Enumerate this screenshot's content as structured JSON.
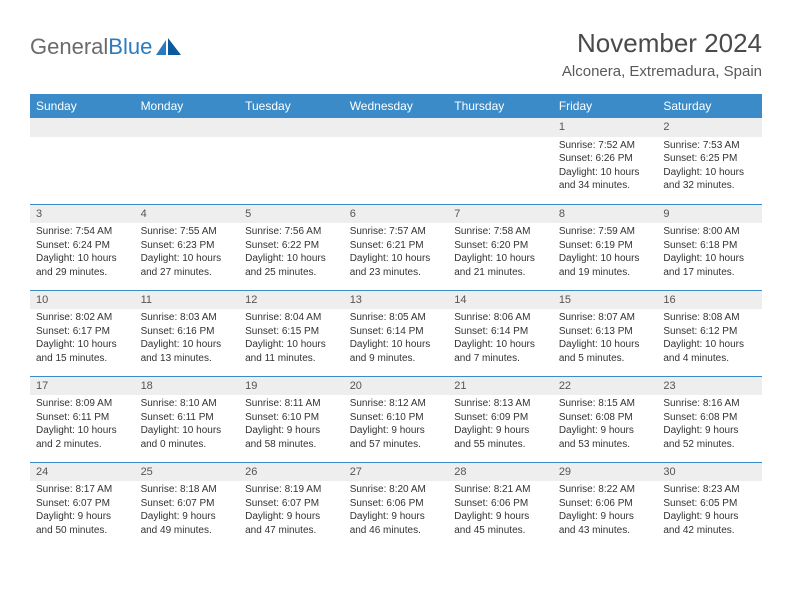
{
  "brand": {
    "part1": "General",
    "part2": "Blue"
  },
  "title": "November 2024",
  "location": "Alconera, Extremadura, Spain",
  "colors": {
    "header_bg": "#3b8bc9",
    "header_text": "#ffffff",
    "cell_border": "#3b8bc9",
    "daynum_bg": "#eeeeee",
    "brand_gray": "#6b6b6b",
    "brand_blue": "#2b7bbf",
    "body_text": "#333333"
  },
  "weekdays": [
    "Sunday",
    "Monday",
    "Tuesday",
    "Wednesday",
    "Thursday",
    "Friday",
    "Saturday"
  ],
  "weeks": [
    [
      {
        "day": "",
        "sunrise": "",
        "sunset": "",
        "daylight": ""
      },
      {
        "day": "",
        "sunrise": "",
        "sunset": "",
        "daylight": ""
      },
      {
        "day": "",
        "sunrise": "",
        "sunset": "",
        "daylight": ""
      },
      {
        "day": "",
        "sunrise": "",
        "sunset": "",
        "daylight": ""
      },
      {
        "day": "",
        "sunrise": "",
        "sunset": "",
        "daylight": ""
      },
      {
        "day": "1",
        "sunrise": "Sunrise: 7:52 AM",
        "sunset": "Sunset: 6:26 PM",
        "daylight": "Daylight: 10 hours and 34 minutes."
      },
      {
        "day": "2",
        "sunrise": "Sunrise: 7:53 AM",
        "sunset": "Sunset: 6:25 PM",
        "daylight": "Daylight: 10 hours and 32 minutes."
      }
    ],
    [
      {
        "day": "3",
        "sunrise": "Sunrise: 7:54 AM",
        "sunset": "Sunset: 6:24 PM",
        "daylight": "Daylight: 10 hours and 29 minutes."
      },
      {
        "day": "4",
        "sunrise": "Sunrise: 7:55 AM",
        "sunset": "Sunset: 6:23 PM",
        "daylight": "Daylight: 10 hours and 27 minutes."
      },
      {
        "day": "5",
        "sunrise": "Sunrise: 7:56 AM",
        "sunset": "Sunset: 6:22 PM",
        "daylight": "Daylight: 10 hours and 25 minutes."
      },
      {
        "day": "6",
        "sunrise": "Sunrise: 7:57 AM",
        "sunset": "Sunset: 6:21 PM",
        "daylight": "Daylight: 10 hours and 23 minutes."
      },
      {
        "day": "7",
        "sunrise": "Sunrise: 7:58 AM",
        "sunset": "Sunset: 6:20 PM",
        "daylight": "Daylight: 10 hours and 21 minutes."
      },
      {
        "day": "8",
        "sunrise": "Sunrise: 7:59 AM",
        "sunset": "Sunset: 6:19 PM",
        "daylight": "Daylight: 10 hours and 19 minutes."
      },
      {
        "day": "9",
        "sunrise": "Sunrise: 8:00 AM",
        "sunset": "Sunset: 6:18 PM",
        "daylight": "Daylight: 10 hours and 17 minutes."
      }
    ],
    [
      {
        "day": "10",
        "sunrise": "Sunrise: 8:02 AM",
        "sunset": "Sunset: 6:17 PM",
        "daylight": "Daylight: 10 hours and 15 minutes."
      },
      {
        "day": "11",
        "sunrise": "Sunrise: 8:03 AM",
        "sunset": "Sunset: 6:16 PM",
        "daylight": "Daylight: 10 hours and 13 minutes."
      },
      {
        "day": "12",
        "sunrise": "Sunrise: 8:04 AM",
        "sunset": "Sunset: 6:15 PM",
        "daylight": "Daylight: 10 hours and 11 minutes."
      },
      {
        "day": "13",
        "sunrise": "Sunrise: 8:05 AM",
        "sunset": "Sunset: 6:14 PM",
        "daylight": "Daylight: 10 hours and 9 minutes."
      },
      {
        "day": "14",
        "sunrise": "Sunrise: 8:06 AM",
        "sunset": "Sunset: 6:14 PM",
        "daylight": "Daylight: 10 hours and 7 minutes."
      },
      {
        "day": "15",
        "sunrise": "Sunrise: 8:07 AM",
        "sunset": "Sunset: 6:13 PM",
        "daylight": "Daylight: 10 hours and 5 minutes."
      },
      {
        "day": "16",
        "sunrise": "Sunrise: 8:08 AM",
        "sunset": "Sunset: 6:12 PM",
        "daylight": "Daylight: 10 hours and 4 minutes."
      }
    ],
    [
      {
        "day": "17",
        "sunrise": "Sunrise: 8:09 AM",
        "sunset": "Sunset: 6:11 PM",
        "daylight": "Daylight: 10 hours and 2 minutes."
      },
      {
        "day": "18",
        "sunrise": "Sunrise: 8:10 AM",
        "sunset": "Sunset: 6:11 PM",
        "daylight": "Daylight: 10 hours and 0 minutes."
      },
      {
        "day": "19",
        "sunrise": "Sunrise: 8:11 AM",
        "sunset": "Sunset: 6:10 PM",
        "daylight": "Daylight: 9 hours and 58 minutes."
      },
      {
        "day": "20",
        "sunrise": "Sunrise: 8:12 AM",
        "sunset": "Sunset: 6:10 PM",
        "daylight": "Daylight: 9 hours and 57 minutes."
      },
      {
        "day": "21",
        "sunrise": "Sunrise: 8:13 AM",
        "sunset": "Sunset: 6:09 PM",
        "daylight": "Daylight: 9 hours and 55 minutes."
      },
      {
        "day": "22",
        "sunrise": "Sunrise: 8:15 AM",
        "sunset": "Sunset: 6:08 PM",
        "daylight": "Daylight: 9 hours and 53 minutes."
      },
      {
        "day": "23",
        "sunrise": "Sunrise: 8:16 AM",
        "sunset": "Sunset: 6:08 PM",
        "daylight": "Daylight: 9 hours and 52 minutes."
      }
    ],
    [
      {
        "day": "24",
        "sunrise": "Sunrise: 8:17 AM",
        "sunset": "Sunset: 6:07 PM",
        "daylight": "Daylight: 9 hours and 50 minutes."
      },
      {
        "day": "25",
        "sunrise": "Sunrise: 8:18 AM",
        "sunset": "Sunset: 6:07 PM",
        "daylight": "Daylight: 9 hours and 49 minutes."
      },
      {
        "day": "26",
        "sunrise": "Sunrise: 8:19 AM",
        "sunset": "Sunset: 6:07 PM",
        "daylight": "Daylight: 9 hours and 47 minutes."
      },
      {
        "day": "27",
        "sunrise": "Sunrise: 8:20 AM",
        "sunset": "Sunset: 6:06 PM",
        "daylight": "Daylight: 9 hours and 46 minutes."
      },
      {
        "day": "28",
        "sunrise": "Sunrise: 8:21 AM",
        "sunset": "Sunset: 6:06 PM",
        "daylight": "Daylight: 9 hours and 45 minutes."
      },
      {
        "day": "29",
        "sunrise": "Sunrise: 8:22 AM",
        "sunset": "Sunset: 6:06 PM",
        "daylight": "Daylight: 9 hours and 43 minutes."
      },
      {
        "day": "30",
        "sunrise": "Sunrise: 8:23 AM",
        "sunset": "Sunset: 6:05 PM",
        "daylight": "Daylight: 9 hours and 42 minutes."
      }
    ]
  ]
}
